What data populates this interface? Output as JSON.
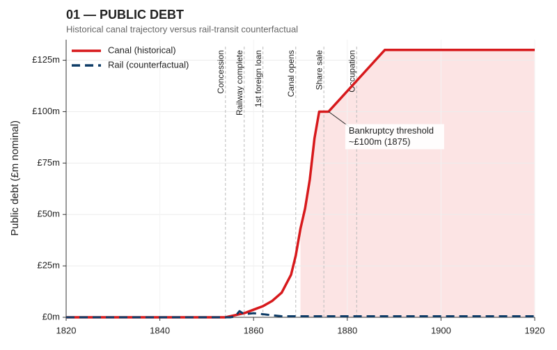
{
  "chart_data": {
    "type": "line",
    "title": "01 — PUBLIC DEBT",
    "subtitle": "Historical canal trajectory versus rail-transit counterfactual",
    "y_label": "Public debt (£m nominal)",
    "xlim": [
      1820,
      1920
    ],
    "xticks": [
      1820,
      1840,
      1860,
      1880,
      1900,
      1920
    ],
    "ylim": [
      0,
      135
    ],
    "yticks": [
      {
        "value": 0,
        "label": "£0m"
      },
      {
        "value": 25,
        "label": "£25m"
      },
      {
        "value": 50,
        "label": "£50m"
      },
      {
        "value": 75,
        "label": "£75m"
      },
      {
        "value": 100,
        "label": "£100m"
      },
      {
        "value": 125,
        "label": "£125m"
      }
    ],
    "grid": true,
    "legend": "upper left",
    "series": [
      {
        "name": "Canal (historical)",
        "color": "#d7191c",
        "dash": false,
        "x": [
          1820,
          1854,
          1856,
          1858,
          1860,
          1862,
          1864,
          1866,
          1868,
          1869,
          1870,
          1871,
          1872,
          1873,
          1874,
          1876,
          1888,
          1920
        ],
        "values": [
          0,
          0,
          1,
          2,
          3.7,
          5.4,
          8,
          12,
          20.7,
          30,
          43,
          53,
          67,
          87,
          100,
          100,
          130,
          130
        ]
      },
      {
        "name": "Rail (counterfactual)",
        "color": "#0d3b66",
        "dash": true,
        "x": [
          1820,
          1855,
          1856,
          1857,
          1858,
          1860,
          1862,
          1864,
          1866,
          1920
        ],
        "values": [
          0,
          0,
          0.3,
          3,
          1.5,
          2,
          1.5,
          1,
          0.5,
          0.5
        ]
      }
    ],
    "shade_start": 1870,
    "shade_color": "#fce4e4",
    "events": [
      {
        "x": 1854,
        "label": "Concession"
      },
      {
        "x": 1858,
        "label": "Railway complete"
      },
      {
        "x": 1862,
        "label": "1st foreign loan"
      },
      {
        "x": 1869,
        "label": "Canal opens"
      },
      {
        "x": 1875,
        "label": "Share sale"
      },
      {
        "x": 1882,
        "label": "Occupation"
      }
    ],
    "annotation": {
      "lines": [
        "Bankruptcy threshold",
        "~£100m (1875)"
      ],
      "x": 1876,
      "y": 100
    }
  }
}
